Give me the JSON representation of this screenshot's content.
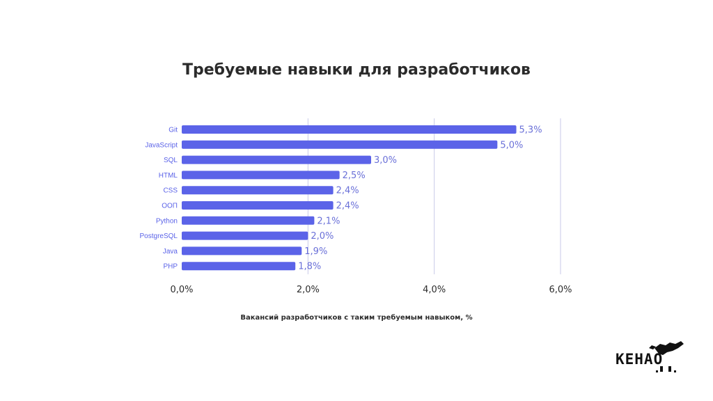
{
  "chart_data": {
    "type": "bar",
    "orientation": "horizontal",
    "title": "Требуемые навыки для разработчиков",
    "xlabel": "Вакансий разработчиков с таким требуемым навыком, %",
    "ylabel": "",
    "categories": [
      "Git",
      "JavaScript",
      "SQL",
      "HTML",
      "CSS",
      "ООП",
      "Python",
      "PostgreSQL",
      "Java",
      "PHP"
    ],
    "values": [
      5.3,
      5.0,
      3.0,
      2.5,
      2.4,
      2.4,
      2.1,
      2.0,
      1.9,
      1.8
    ],
    "value_labels": [
      "5,3%",
      "5,0%",
      "3,0%",
      "2,5%",
      "2,4%",
      "2,4%",
      "2,1%",
      "2,0%",
      "1,9%",
      "1,8%"
    ],
    "xlim": [
      0,
      6
    ],
    "xticks": [
      0,
      2,
      4,
      6
    ],
    "xtick_labels": [
      "0,0%",
      "2,0%",
      "4,0%",
      "6,0%"
    ],
    "grid": "vertical",
    "legend": "none",
    "colors": {
      "bar": "#5b63e8",
      "label": "#5b63e8",
      "value_label": "#6a70d8",
      "grid": "#c8cae8",
      "tick": "#2b2b2b"
    }
  },
  "logo": {
    "text": "KEHAO",
    "icon": "eagle-icon"
  }
}
